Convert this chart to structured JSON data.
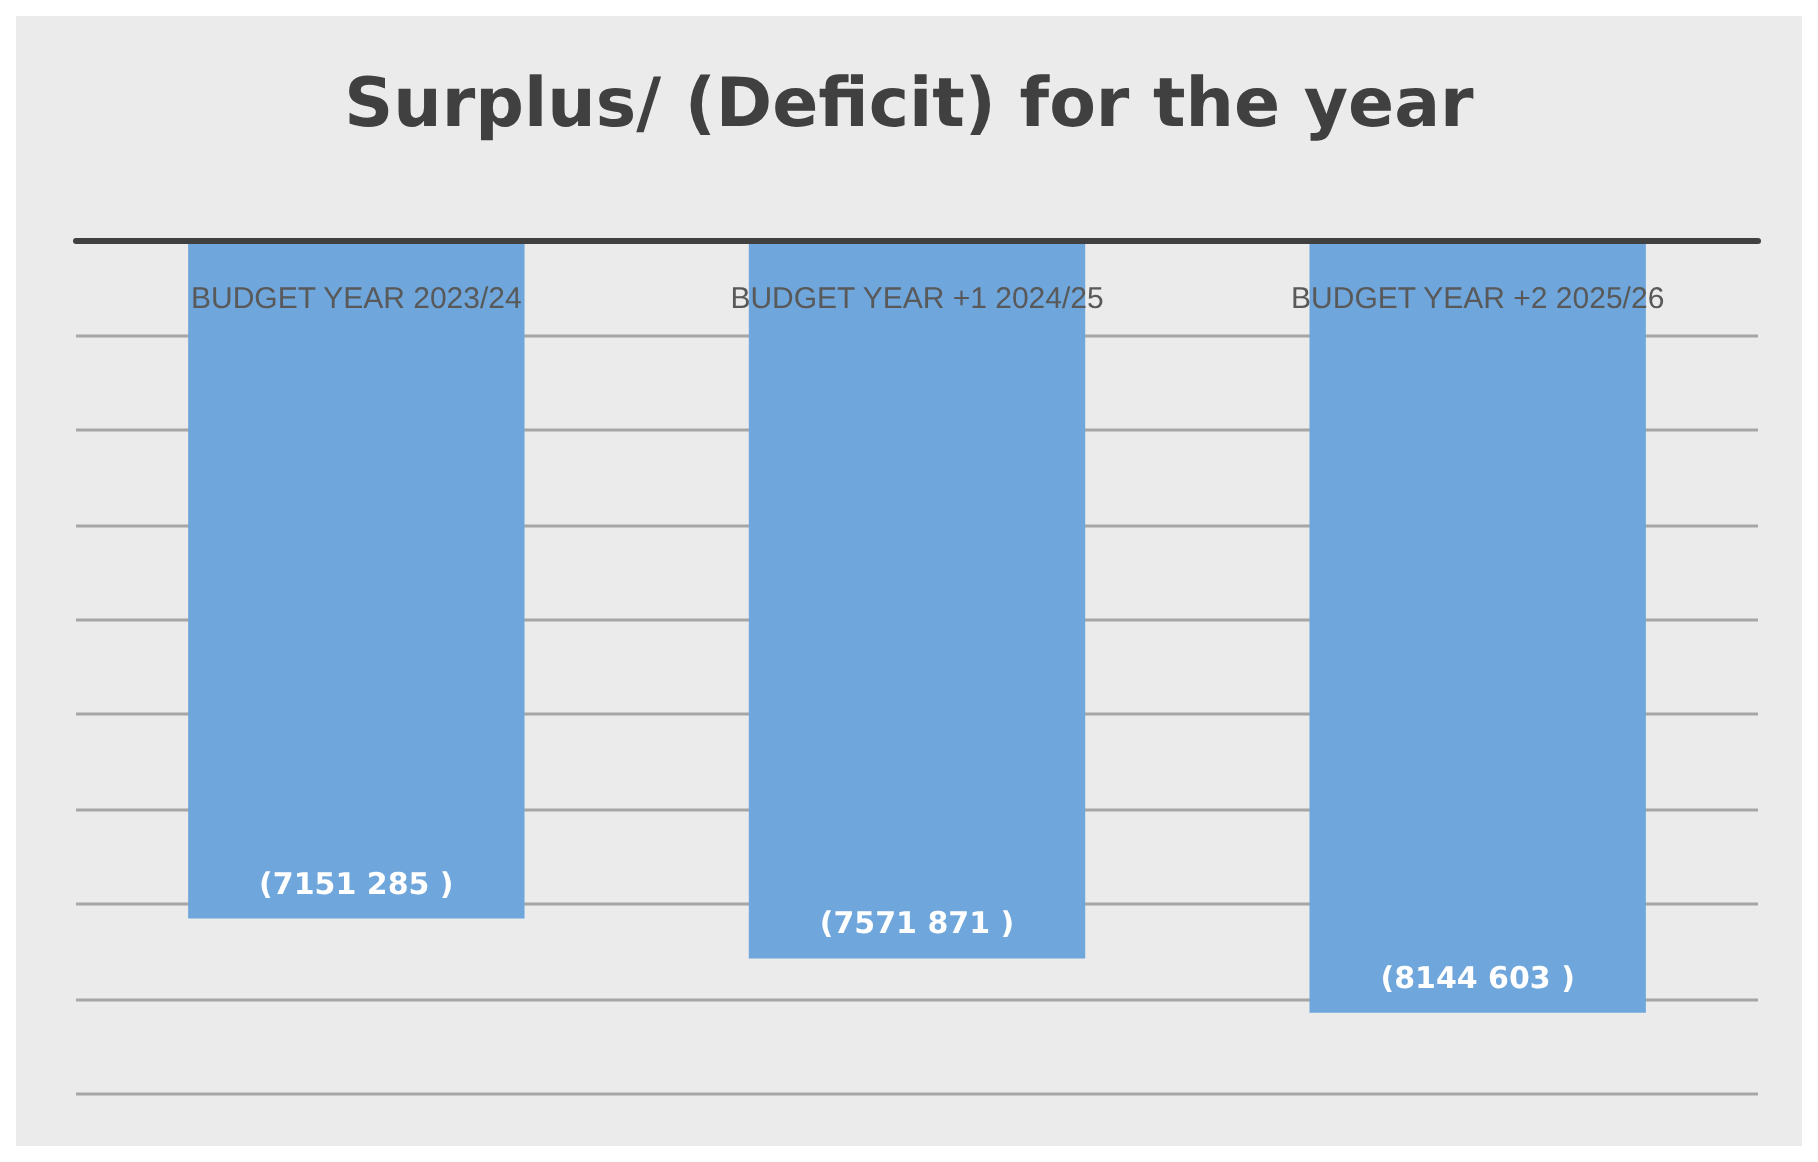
{
  "chart_data": {
    "type": "bar",
    "title": "Surplus/ (Deficit) for the year",
    "categories": [
      "BUDGET YEAR 2023/24",
      "BUDGET YEAR +1 2024/25",
      "BUDGET YEAR +2 2025/26"
    ],
    "values": [
      -7151285,
      -7571871,
      -8144603
    ],
    "value_labels": [
      "(7151 285 )",
      "(7571 871 )",
      "(8144 603 )"
    ],
    "color": "#6fa6dc",
    "grid": "y",
    "tick_labels": "x"
  }
}
